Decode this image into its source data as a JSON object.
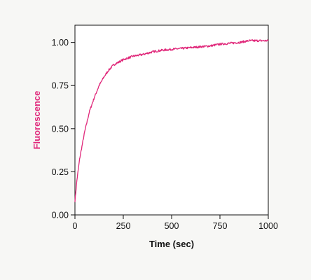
{
  "chart_data": {
    "type": "line",
    "title": "",
    "xlabel": "Time (sec)",
    "ylabel": "Fluorescence",
    "xlim": [
      0,
      1000
    ],
    "ylim": [
      0,
      1.1
    ],
    "xticks": [
      0,
      250,
      500,
      750,
      1000
    ],
    "xtick_labels": [
      "0",
      "250",
      "500",
      "750",
      "1000"
    ],
    "yticks": [
      0,
      0.25,
      0.5,
      0.75,
      1.0
    ],
    "ytick_labels": [
      "0.00",
      "0.25",
      "0.50",
      "0.75",
      "1.00"
    ],
    "grid": false,
    "legend": "none",
    "series": [
      {
        "color": "#e0287a",
        "x": [
          0,
          10,
          25,
          50,
          75,
          100,
          125,
          150,
          175,
          200,
          250,
          300,
          350,
          400,
          450,
          500,
          550,
          600,
          650,
          700,
          750,
          800,
          850,
          900,
          950,
          1000
        ],
        "y": [
          0.08,
          0.2,
          0.33,
          0.48,
          0.6,
          0.68,
          0.75,
          0.8,
          0.84,
          0.87,
          0.9,
          0.92,
          0.93,
          0.945,
          0.955,
          0.96,
          0.965,
          0.97,
          0.975,
          0.98,
          0.99,
          0.995,
          1.0,
          1.01,
          1.01,
          1.01
        ]
      }
    ],
    "axis_title_colors": {
      "xlabel": "#111111",
      "ylabel": "#e0287a"
    }
  }
}
